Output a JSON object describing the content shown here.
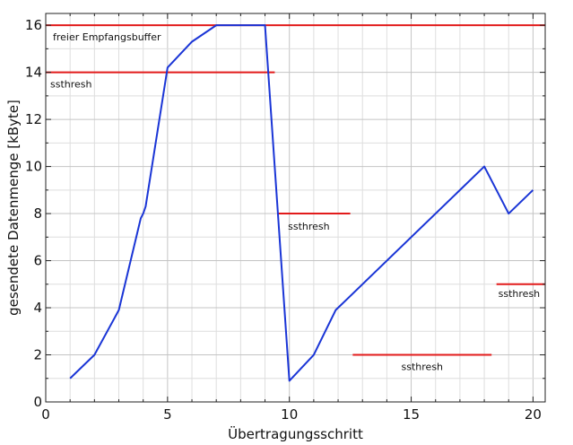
{
  "chart_data": {
    "type": "line",
    "xlabel": "Übertragungsschritt",
    "ylabel": "gesendete Datenmenge [kByte]",
    "xlim": [
      0,
      20.5
    ],
    "ylim": [
      0,
      16.5
    ],
    "x_ticks": [
      0,
      5,
      10,
      15,
      20
    ],
    "y_ticks": [
      0,
      2,
      4,
      6,
      8,
      10,
      12,
      14,
      16
    ],
    "grid": true,
    "series": [
      {
        "color": "#1a35d6",
        "points": [
          [
            1,
            1
          ],
          [
            2,
            2
          ],
          [
            3,
            3.9
          ],
          [
            3.9,
            7.8
          ],
          [
            4,
            8
          ],
          [
            4.1,
            8.3
          ],
          [
            5,
            14.2
          ],
          [
            6,
            15.3
          ],
          [
            7,
            16
          ],
          [
            9,
            16
          ],
          [
            10,
            0.9
          ],
          [
            11,
            2
          ],
          [
            11.9,
            3.9
          ],
          [
            12,
            4
          ],
          [
            18,
            10
          ],
          [
            19,
            8
          ],
          [
            20,
            9
          ]
        ]
      }
    ],
    "threshold_lines": [
      {
        "x_start": 0,
        "x_end": 20.5,
        "y": 16,
        "label": "freier Empfangsbuffer",
        "color": "#e21b1b"
      },
      {
        "x_start": 0,
        "x_end": 9.4,
        "y": 14,
        "label": "ssthresh",
        "color": "#e21b1b"
      },
      {
        "x_start": 9.5,
        "x_end": 12.5,
        "y": 8,
        "label": "ssthresh",
        "color": "#e21b1b"
      },
      {
        "x_start": 12.6,
        "x_end": 18.3,
        "y": 2,
        "label": "ssthresh",
        "color": "#e21b1b"
      },
      {
        "x_start": 18.5,
        "x_end": 20.5,
        "y": 5,
        "label": "ssthresh",
        "color": "#e21b1b"
      }
    ]
  }
}
